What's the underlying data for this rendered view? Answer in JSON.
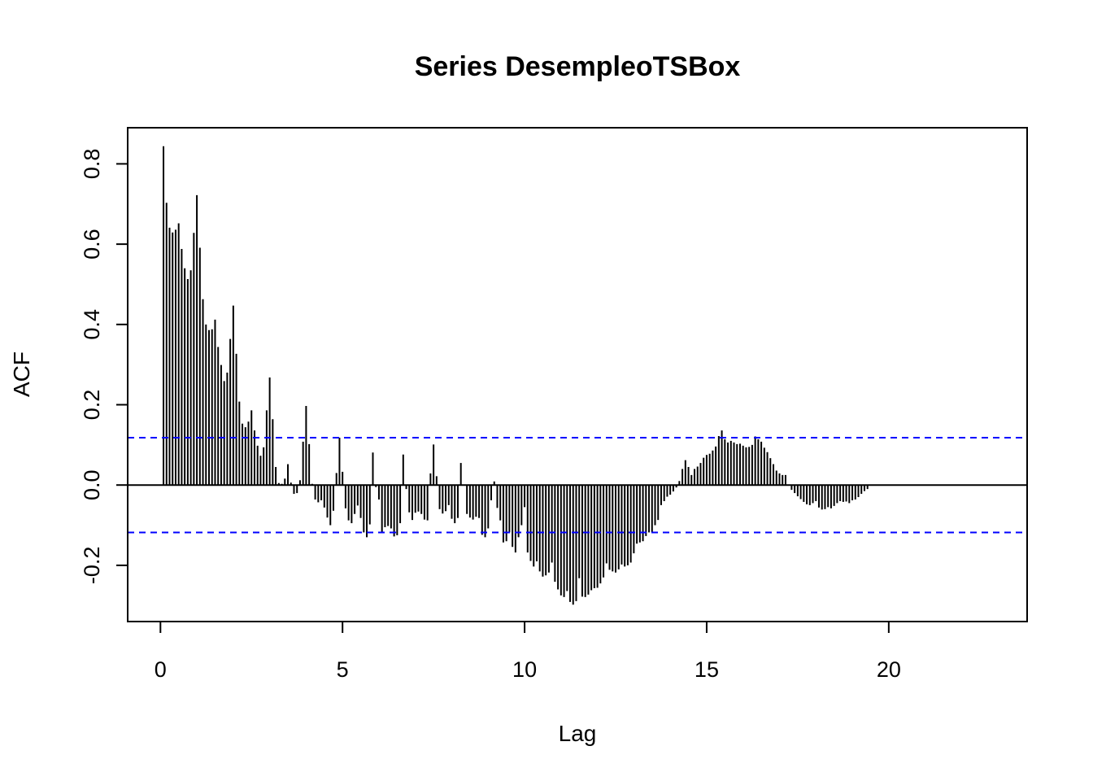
{
  "chart_data": {
    "type": "bar",
    "subtype": "acf",
    "title": "Series DesempleoTSBox",
    "xlabel": "Lag",
    "ylabel": "ACF",
    "xlim": [
      -0.9,
      23.8
    ],
    "ylim": [
      -0.34,
      0.89
    ],
    "x_ticks": [
      0,
      5,
      10,
      15,
      20
    ],
    "x_tick_labels": [
      "0",
      "5",
      "10",
      "15",
      "20"
    ],
    "y_ticks": [
      -0.2,
      0.0,
      0.2,
      0.4,
      0.6,
      0.8
    ],
    "y_tick_labels": [
      "-0.2",
      "0.0",
      "0.2",
      "0.4",
      "0.6",
      "0.8"
    ],
    "confidence_limit": 0.118,
    "confidence_color": "#0000ff",
    "bar_color": "#000000",
    "lag_step": 0.08333,
    "values": [
      0.844,
      0.703,
      0.641,
      0.629,
      0.636,
      0.652,
      0.588,
      0.54,
      0.513,
      0.535,
      0.628,
      0.722,
      0.591,
      0.463,
      0.4,
      0.386,
      0.388,
      0.412,
      0.344,
      0.299,
      0.259,
      0.28,
      0.364,
      0.447,
      0.327,
      0.208,
      0.153,
      0.144,
      0.158,
      0.186,
      0.136,
      0.098,
      0.073,
      0.094,
      0.186,
      0.268,
      0.164,
      0.045,
      0.005,
      0.003,
      0.016,
      0.052,
      0.006,
      -0.022,
      -0.02,
      0.012,
      0.108,
      0.197,
      0.102,
      0.003,
      -0.036,
      -0.043,
      -0.038,
      -0.056,
      -0.081,
      -0.1,
      -0.064,
      0.03,
      0.118,
      0.033,
      -0.058,
      -0.088,
      -0.095,
      -0.072,
      -0.051,
      -0.082,
      -0.118,
      -0.13,
      -0.098,
      0.081,
      -0.005,
      -0.036,
      -0.118,
      -0.105,
      -0.102,
      -0.108,
      -0.128,
      -0.125,
      -0.095,
      0.076,
      -0.01,
      -0.068,
      -0.087,
      -0.069,
      -0.066,
      -0.072,
      -0.086,
      -0.088,
      0.029,
      0.101,
      0.022,
      -0.06,
      -0.071,
      -0.065,
      -0.05,
      -0.084,
      -0.095,
      -0.082,
      0.055,
      0.0,
      -0.072,
      -0.081,
      -0.086,
      -0.079,
      -0.082,
      -0.124,
      -0.13,
      -0.108,
      -0.038,
      0.009,
      -0.057,
      -0.088,
      -0.143,
      -0.14,
      -0.118,
      -0.154,
      -0.168,
      -0.13,
      -0.1,
      -0.055,
      -0.168,
      -0.189,
      -0.203,
      -0.19,
      -0.215,
      -0.228,
      -0.225,
      -0.218,
      -0.193,
      -0.241,
      -0.26,
      -0.275,
      -0.279,
      -0.264,
      -0.291,
      -0.298,
      -0.289,
      -0.232,
      -0.278,
      -0.279,
      -0.273,
      -0.262,
      -0.257,
      -0.256,
      -0.245,
      -0.23,
      -0.195,
      -0.211,
      -0.215,
      -0.218,
      -0.21,
      -0.198,
      -0.203,
      -0.2,
      -0.193,
      -0.17,
      -0.146,
      -0.143,
      -0.14,
      -0.127,
      -0.118,
      -0.117,
      -0.1,
      -0.087,
      -0.05,
      -0.04,
      -0.029,
      -0.024,
      -0.016,
      -0.006,
      0.01,
      0.04,
      0.062,
      0.045,
      0.025,
      0.04,
      0.046,
      0.055,
      0.068,
      0.075,
      0.078,
      0.086,
      0.096,
      0.122,
      0.136,
      0.114,
      0.106,
      0.11,
      0.106,
      0.102,
      0.103,
      0.098,
      0.094,
      0.095,
      0.1,
      0.121,
      0.114,
      0.108,
      0.093,
      0.082,
      0.067,
      0.052,
      0.036,
      0.029,
      0.025,
      0.025,
      0.0,
      -0.012,
      -0.02,
      -0.028,
      -0.035,
      -0.042,
      -0.048,
      -0.05,
      -0.045,
      -0.04,
      -0.056,
      -0.061,
      -0.06,
      -0.055,
      -0.058,
      -0.052,
      -0.045,
      -0.04,
      -0.042,
      -0.041,
      -0.045,
      -0.038,
      -0.036,
      -0.03,
      -0.022,
      -0.015,
      -0.01
    ]
  }
}
